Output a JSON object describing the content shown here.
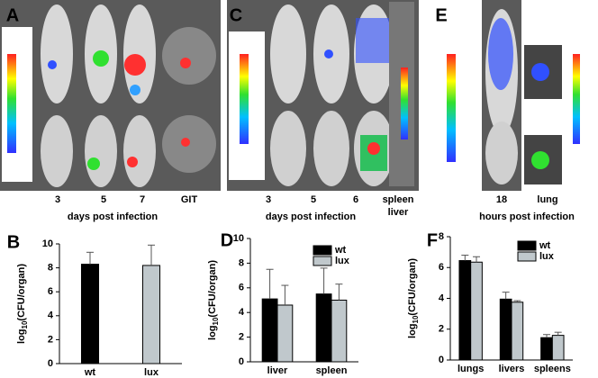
{
  "images": [
    {
      "panel": "A",
      "labels": [
        "3",
        "5",
        "7",
        "GIT"
      ],
      "xlabel": "days post infection"
    },
    {
      "panel": "C",
      "labels": [
        "3",
        "5",
        "6",
        "spleen",
        "liver"
      ],
      "xlabel": "days post infection"
    },
    {
      "panel": "E",
      "labels": [
        "18",
        "lung"
      ],
      "xlabel": "hours post infection"
    }
  ],
  "chart_data": [
    {
      "type": "bar",
      "panel": "B",
      "ylabel": [
        "log",
        "10",
        "(CFU/organ)"
      ],
      "categories": [
        "wt",
        "lux"
      ],
      "values": [
        8.3,
        8.2
      ],
      "errors": [
        1.0,
        1.7
      ],
      "colors": [
        "#000000",
        "#c0c8cc"
      ],
      "ylim": [
        0,
        10
      ],
      "yticks": [
        0,
        2,
        4,
        6,
        8,
        10
      ]
    },
    {
      "type": "bar",
      "panel": "D",
      "ylabel": [
        "log",
        "10",
        "(CFU/organ)"
      ],
      "categories": [
        "liver",
        "spleen"
      ],
      "series": [
        {
          "name": "wt",
          "color": "#000000",
          "values": [
            5.1,
            5.5
          ],
          "errors": [
            2.4,
            2.1
          ]
        },
        {
          "name": "lux",
          "color": "#c0c8cc",
          "values": [
            4.6,
            5.0
          ],
          "errors": [
            1.6,
            1.3
          ]
        }
      ],
      "ylim": [
        0,
        10
      ],
      "yticks": [
        0,
        2,
        4,
        6,
        8,
        10
      ]
    },
    {
      "type": "bar",
      "panel": "F",
      "ylabel": [
        "log",
        "10",
        "(CFU/organ)"
      ],
      "categories": [
        "lungs",
        "livers",
        "spleens"
      ],
      "series": [
        {
          "name": "wt",
          "color": "#000000",
          "values": [
            6.45,
            3.95,
            1.45
          ],
          "errors": [
            0.35,
            0.45,
            0.2
          ]
        },
        {
          "name": "lux",
          "color": "#c0c8cc",
          "values": [
            6.35,
            3.75,
            1.6
          ],
          "errors": [
            0.35,
            0.1,
            0.2
          ]
        }
      ],
      "ylim": [
        0,
        8
      ],
      "yticks": [
        0,
        2,
        4,
        6,
        8
      ]
    }
  ]
}
